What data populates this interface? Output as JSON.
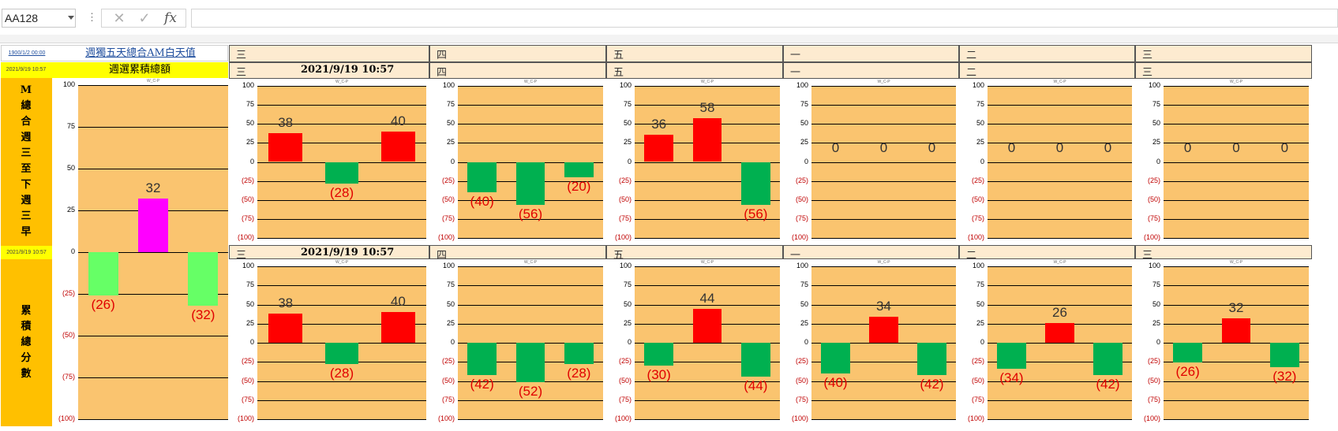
{
  "namebox": {
    "cell": "AA128"
  },
  "formula_bar": {
    "cancel_icon": "x-icon",
    "enter_icon": "check-icon",
    "function_label": "fx",
    "value": ""
  },
  "left_panel": {
    "header_date1": "1900/1/2 00:00",
    "link_text": "週獨五天總合AM白天值",
    "header_date2": "2021/9/19 10:57",
    "title": "週選累積總額",
    "vertical_label_top": [
      "M",
      "總",
      "合",
      "週",
      "三",
      "至",
      "下",
      "週",
      "三",
      "早"
    ],
    "mid_date": "2021/9/19 10:57",
    "vertical_label_bottom": [
      "累",
      "積",
      "總",
      "分",
      "數"
    ]
  },
  "section_headers": {
    "row1": [
      "三",
      "四",
      "五",
      "一",
      "二",
      "三"
    ],
    "row2": [
      "三",
      "四",
      "五",
      "一",
      "二",
      "三"
    ],
    "row3": [
      "三",
      "四",
      "五",
      "一",
      "二",
      "三"
    ],
    "row2_date": "2021/9/19 10:57",
    "row3_date": "2021/9/19 10:57"
  },
  "chart_data": [
    {
      "type": "bar",
      "title": "W_C-P",
      "ylim": [
        -100,
        100
      ],
      "ticks": [
        "100",
        "75",
        "50",
        "25",
        "0",
        "(25)",
        "(50)",
        "(75)",
        "(100)"
      ],
      "values": [
        -26,
        32,
        -32
      ],
      "labels": [
        "(26)",
        "32",
        "(32)"
      ],
      "colors": [
        "#66ff66",
        "#ff00ff",
        "#66ff66"
      ]
    },
    {
      "type": "bar",
      "title": "W_C-P",
      "ylim": [
        -100,
        100
      ],
      "ticks": [
        "100",
        "75",
        "50",
        "25",
        "0",
        "(25)",
        "(50)",
        "(75)",
        "(100)"
      ],
      "values": [
        38,
        -28,
        40
      ],
      "labels": [
        "38",
        "(28)",
        "40"
      ],
      "colors": [
        "#ff0000",
        "#00b050",
        "#ff0000"
      ]
    },
    {
      "type": "bar",
      "title": "W_C-P",
      "ylim": [
        -100,
        100
      ],
      "ticks": [
        "100",
        "75",
        "50",
        "25",
        "0",
        "(25)",
        "(50)",
        "(75)",
        "(100)"
      ],
      "values": [
        -40,
        -56,
        -20
      ],
      "labels": [
        "(40)",
        "(56)",
        "(20)"
      ],
      "colors": [
        "#00b050",
        "#00b050",
        "#00b050"
      ]
    },
    {
      "type": "bar",
      "title": "W_C-P",
      "ylim": [
        -100,
        100
      ],
      "ticks": [
        "100",
        "75",
        "50",
        "25",
        "0",
        "(25)",
        "(50)",
        "(75)",
        "(100)"
      ],
      "values": [
        36,
        58,
        -56
      ],
      "labels": [
        "36",
        "58",
        "(56)"
      ],
      "colors": [
        "#ff0000",
        "#ff0000",
        "#00b050"
      ]
    },
    {
      "type": "bar",
      "title": "W_C-P",
      "ylim": [
        -100,
        100
      ],
      "ticks": [
        "100",
        "75",
        "50",
        "25",
        "0",
        "(25)",
        "(50)",
        "(75)",
        "(100)"
      ],
      "values": [
        0,
        0,
        0
      ],
      "labels": [
        "0",
        "0",
        "0"
      ],
      "colors": [
        "#ff0000",
        "#ff0000",
        "#ff0000"
      ]
    },
    {
      "type": "bar",
      "title": "W_C-P",
      "ylim": [
        -100,
        100
      ],
      "ticks": [
        "100",
        "75",
        "50",
        "25",
        "0",
        "(25)",
        "(50)",
        "(75)",
        "(100)"
      ],
      "values": [
        0,
        0,
        0
      ],
      "labels": [
        "0",
        "0",
        "0"
      ],
      "colors": [
        "#ff0000",
        "#ff0000",
        "#ff0000"
      ]
    },
    {
      "type": "bar",
      "title": "W_C-P",
      "ylim": [
        -100,
        100
      ],
      "ticks": [
        "100",
        "75",
        "50",
        "25",
        "0",
        "(25)",
        "(50)",
        "(75)",
        "(100)"
      ],
      "values": [
        0,
        0,
        0
      ],
      "labels": [
        "0",
        "0",
        "0"
      ],
      "colors": [
        "#ff0000",
        "#ff0000",
        "#ff0000"
      ]
    },
    {
      "type": "bar",
      "title": "W_C-P",
      "ylim": [
        -100,
        100
      ],
      "ticks": [
        "100",
        "75",
        "50",
        "25",
        "0",
        "(25)",
        "(50)",
        "(75)",
        "(100)"
      ],
      "values": [
        38,
        -28,
        40
      ],
      "labels": [
        "38",
        "(28)",
        "40"
      ],
      "colors": [
        "#ff0000",
        "#00b050",
        "#ff0000"
      ]
    },
    {
      "type": "bar",
      "title": "W_C-P",
      "ylim": [
        -100,
        100
      ],
      "ticks": [
        "100",
        "75",
        "50",
        "25",
        "0",
        "(25)",
        "(50)",
        "(75)",
        "(100)"
      ],
      "values": [
        -42,
        -52,
        -28
      ],
      "labels": [
        "(42)",
        "(52)",
        "(28)"
      ],
      "colors": [
        "#00b050",
        "#00b050",
        "#00b050"
      ]
    },
    {
      "type": "bar",
      "title": "W_C-P",
      "ylim": [
        -100,
        100
      ],
      "ticks": [
        "100",
        "75",
        "50",
        "25",
        "0",
        "(25)",
        "(50)",
        "(75)",
        "(100)"
      ],
      "values": [
        -30,
        44,
        -44
      ],
      "labels": [
        "(30)",
        "44",
        "(44)"
      ],
      "colors": [
        "#00b050",
        "#ff0000",
        "#00b050"
      ]
    },
    {
      "type": "bar",
      "title": "W_C-P",
      "ylim": [
        -100,
        100
      ],
      "ticks": [
        "100",
        "75",
        "50",
        "25",
        "0",
        "(25)",
        "(50)",
        "(75)",
        "(100)"
      ],
      "values": [
        -40,
        34,
        -42
      ],
      "labels": [
        "(40)",
        "34",
        "(42)"
      ],
      "colors": [
        "#00b050",
        "#ff0000",
        "#00b050"
      ]
    },
    {
      "type": "bar",
      "title": "W_C-P",
      "ylim": [
        -100,
        100
      ],
      "ticks": [
        "100",
        "75",
        "50",
        "25",
        "0",
        "(25)",
        "(50)",
        "(75)",
        "(100)"
      ],
      "values": [
        -34,
        26,
        -42
      ],
      "labels": [
        "(34)",
        "26",
        "(42)"
      ],
      "colors": [
        "#00b050",
        "#ff0000",
        "#00b050"
      ]
    },
    {
      "type": "bar",
      "title": "W_C-P",
      "ylim": [
        -100,
        100
      ],
      "ticks": [
        "100",
        "75",
        "50",
        "25",
        "0",
        "(25)",
        "(50)",
        "(75)",
        "(100)"
      ],
      "values": [
        -26,
        32,
        -32
      ],
      "labels": [
        "(26)",
        "32",
        "(32)"
      ],
      "colors": [
        "#00b050",
        "#ff0000",
        "#00b050"
      ]
    }
  ]
}
